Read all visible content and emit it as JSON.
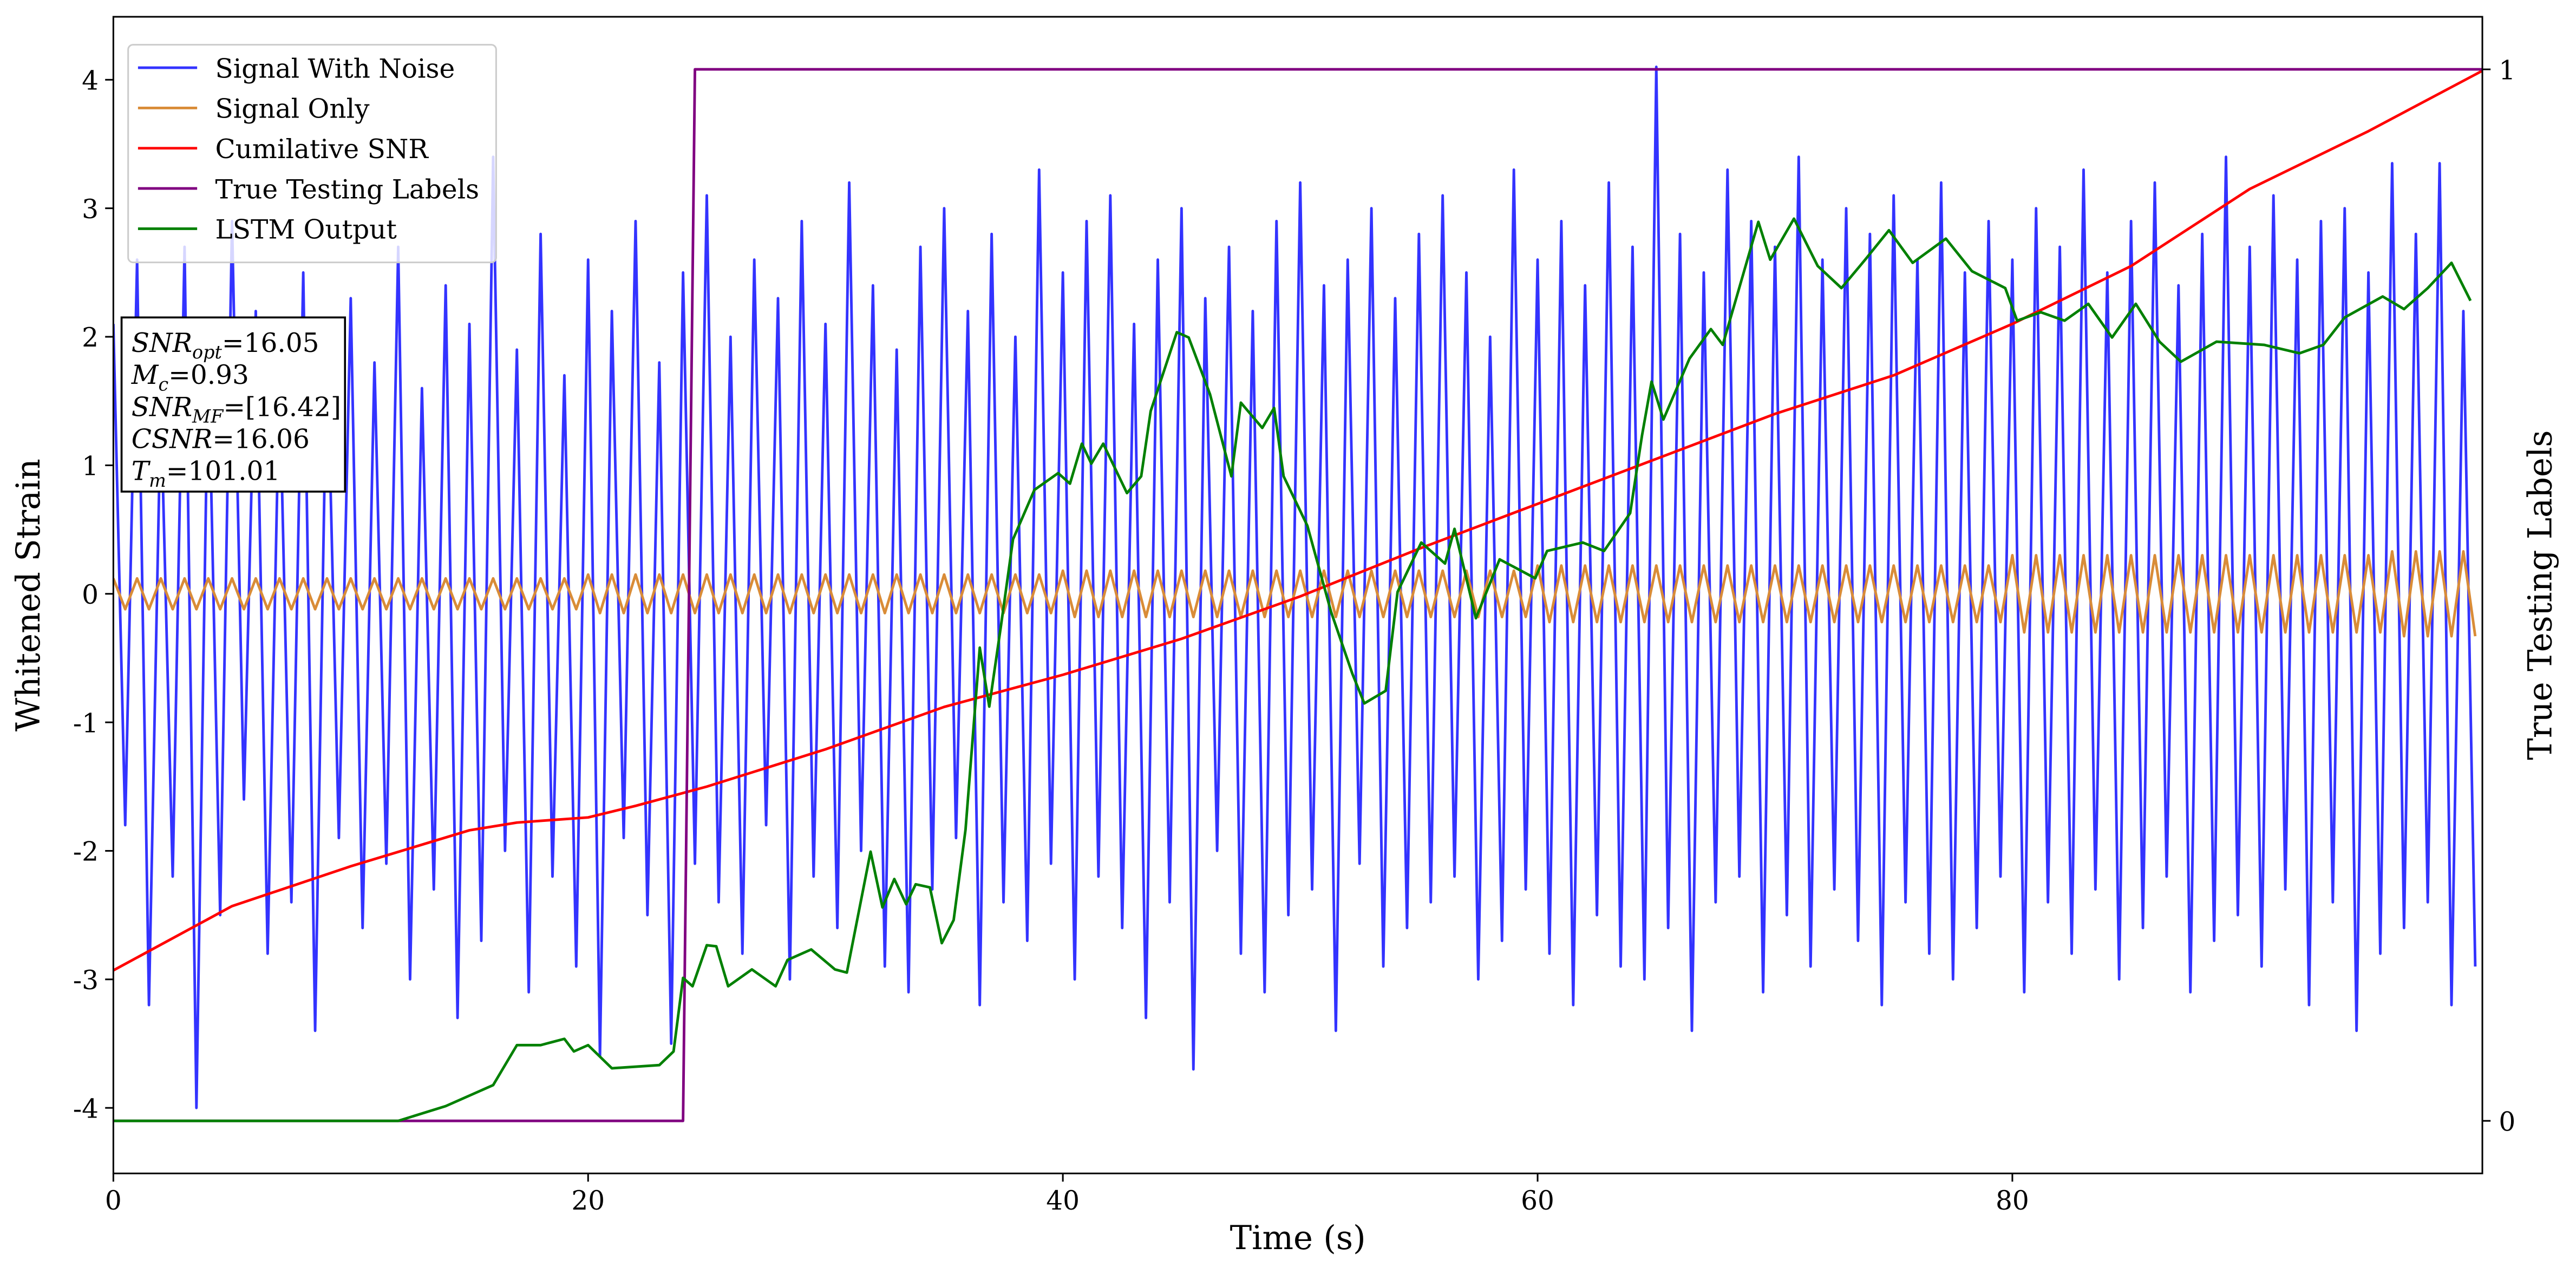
{
  "chart_data": {
    "type": "line",
    "xlabel": "Time (s)",
    "ylabel": "Whitened Strain",
    "y2label": "True Testing Labels",
    "xlim": [
      0,
      99.8
    ],
    "ylim": [
      -4.51,
      4.49
    ],
    "y2lim": [
      -0.05,
      1.05
    ],
    "xticks": [
      0,
      20,
      40,
      60,
      80
    ],
    "yticks": [
      -4,
      -3,
      -2,
      -1,
      0,
      1,
      2,
      3,
      4
    ],
    "y2ticks": [
      0,
      1
    ],
    "legend": "upper left",
    "x": [
      0,
      0.5,
      1,
      1.5,
      2,
      2.5,
      3,
      3.5,
      4,
      4.5,
      5,
      5.5,
      6,
      6.5,
      7,
      7.5,
      8,
      8.5,
      9,
      9.5,
      10,
      10.5,
      11,
      11.5,
      12,
      12.5,
      13,
      13.5,
      14,
      14.5,
      15,
      15.5,
      16,
      16.5,
      17,
      17.5,
      18,
      18.5,
      19,
      19.5,
      20,
      20.5,
      21,
      21.5,
      22,
      22.5,
      23,
      23.5,
      24,
      24.5,
      25,
      25.5,
      26,
      26.5,
      27,
      27.5,
      28,
      28.5,
      29,
      29.5,
      30,
      30.5,
      31,
      31.5,
      32,
      32.5,
      33,
      33.5,
      34,
      34.5,
      35,
      35.5,
      36,
      36.5,
      37,
      37.5,
      38,
      38.5,
      39,
      39.5,
      40,
      40.5,
      41,
      41.5,
      42,
      42.5,
      43,
      43.5,
      44,
      44.5,
      45,
      45.5,
      46,
      46.5,
      47,
      47.5,
      48,
      48.5,
      49,
      49.5,
      50,
      50.5,
      51,
      51.5,
      52,
      52.5,
      53,
      53.5,
      54,
      54.5,
      55,
      55.5,
      56,
      56.5,
      57,
      57.5,
      58,
      58.5,
      59,
      59.5,
      60,
      60.5,
      61,
      61.5,
      62,
      62.5,
      63,
      63.5,
      64,
      64.5,
      65,
      65.5,
      66,
      66.5,
      67,
      67.5,
      68,
      68.5,
      69,
      69.5,
      70,
      70.5,
      71,
      71.5,
      72,
      72.5,
      73,
      73.5,
      74,
      74.5,
      75,
      75.5,
      76,
      76.5,
      77,
      77.5,
      78,
      78.5,
      79,
      79.5,
      80,
      80.5,
      81,
      81.5,
      82,
      82.5,
      83,
      83.5,
      84,
      84.5,
      85,
      85.5,
      86,
      86.5,
      87,
      87.5,
      88,
      88.5,
      89,
      89.5,
      90,
      90.5,
      91,
      91.5,
      92,
      92.5,
      93,
      93.5,
      94,
      94.5,
      95,
      95.5,
      96,
      96.5,
      97,
      97.5,
      98,
      98.5,
      99,
      99.5
    ],
    "series": [
      {
        "name": "Signal With Noise",
        "color": "#3333ff",
        "values": [
          2.1,
          -1.8,
          2.6,
          -3.2,
          1.5,
          -2.2,
          2.7,
          -4.0,
          1.9,
          -2.5,
          2.9,
          -1.6,
          2.2,
          -2.8,
          1.7,
          -2.4,
          2.5,
          -3.4,
          2.0,
          -1.9,
          2.3,
          -2.6,
          1.8,
          -2.1,
          2.7,
          -3.0,
          1.6,
          -2.3,
          2.4,
          -3.3,
          2.1,
          -2.7,
          3.4,
          -2.0,
          1.9,
          -3.1,
          2.8,
          -2.2,
          1.7,
          -2.9,
          2.6,
          -3.6,
          2.2,
          -1.9,
          2.9,
          -2.5,
          1.8,
          -3.5,
          2.5,
          -2.1,
          3.1,
          -2.4,
          2.0,
          -2.8,
          2.6,
          -1.8,
          2.3,
          -3.0,
          2.9,
          -2.2,
          2.1,
          -2.6,
          3.2,
          -2.0,
          2.4,
          -2.9,
          1.9,
          -3.1,
          2.7,
          -2.3,
          3.0,
          -1.9,
          2.2,
          -3.2,
          2.8,
          -2.4,
          2.0,
          -2.7,
          3.3,
          -2.1,
          2.5,
          -3.0,
          2.9,
          -2.2,
          3.1,
          -2.6,
          2.1,
          -3.3,
          2.6,
          -2.4,
          3.0,
          -3.7,
          2.3,
          -2.0,
          2.7,
          -2.8,
          2.2,
          -3.1,
          2.9,
          -2.5,
          3.2,
          -2.3,
          2.4,
          -3.4,
          2.6,
          -2.1,
          3.0,
          -2.9,
          2.3,
          -2.6,
          2.8,
          -2.4,
          3.1,
          -2.2,
          2.5,
          -3.0,
          2.0,
          -2.7,
          3.3,
          -2.3,
          2.6,
          -2.8,
          2.9,
          -3.2,
          2.4,
          -2.5,
          3.2,
          -2.9,
          2.7,
          -3.0,
          4.1,
          -2.6,
          2.8,
          -3.4,
          2.5,
          -2.4,
          3.3,
          -2.2,
          2.9,
          -3.1,
          2.7,
          -2.5,
          3.4,
          -2.9,
          2.6,
          -2.3,
          3.0,
          -2.7,
          2.8,
          -3.2,
          3.1,
          -2.4,
          2.6,
          -2.8,
          3.2,
          -3.0,
          2.5,
          -2.6,
          2.9,
          -2.2,
          2.6,
          -3.1,
          3.0,
          -2.4,
          2.7,
          -2.8,
          3.3,
          -2.3,
          2.5,
          -3.0,
          2.9,
          -2.6,
          3.2,
          -2.2,
          2.4,
          -3.1,
          2.8,
          -2.7,
          3.4,
          -2.5,
          2.7,
          -2.9,
          3.1,
          -2.3,
          2.6,
          -3.2,
          2.9,
          -2.4,
          3.0,
          -3.4,
          2.5,
          -2.8,
          3.35,
          -2.6,
          2.8,
          -2.4,
          3.35,
          -3.2,
          2.2,
          -2.9
        ]
      },
      {
        "name": "Signal Only",
        "color": "#d98c38",
        "values": [
          0.12,
          -0.12,
          0.12,
          -0.12,
          0.12,
          -0.12,
          0.12,
          -0.12,
          0.12,
          -0.12,
          0.12,
          -0.12,
          0.12,
          -0.12,
          0.12,
          -0.12,
          0.12,
          -0.12,
          0.12,
          -0.12,
          0.12,
          -0.12,
          0.12,
          -0.12,
          0.12,
          -0.12,
          0.12,
          -0.12,
          0.12,
          -0.12,
          0.12,
          -0.12,
          0.12,
          -0.12,
          0.12,
          -0.12,
          0.12,
          -0.12,
          0.12,
          -0.12,
          0.15,
          -0.15,
          0.15,
          -0.15,
          0.15,
          -0.15,
          0.15,
          -0.15,
          0.15,
          -0.15,
          0.15,
          -0.15,
          0.15,
          -0.15,
          0.15,
          -0.15,
          0.15,
          -0.15,
          0.15,
          -0.15,
          0.15,
          -0.15,
          0.15,
          -0.15,
          0.15,
          -0.15,
          0.15,
          -0.15,
          0.15,
          -0.15,
          0.15,
          -0.15,
          0.15,
          -0.15,
          0.15,
          -0.15,
          0.15,
          -0.15,
          0.15,
          -0.15,
          0.18,
          -0.18,
          0.18,
          -0.18,
          0.18,
          -0.18,
          0.18,
          -0.18,
          0.18,
          -0.18,
          0.18,
          -0.18,
          0.18,
          -0.18,
          0.18,
          -0.18,
          0.18,
          -0.18,
          0.18,
          -0.18,
          0.18,
          -0.18,
          0.18,
          -0.18,
          0.18,
          -0.18,
          0.18,
          -0.18,
          0.18,
          -0.18,
          0.18,
          -0.18,
          0.18,
          -0.18,
          0.18,
          -0.18,
          0.18,
          -0.18,
          0.18,
          -0.18,
          0.22,
          -0.22,
          0.22,
          -0.22,
          0.22,
          -0.22,
          0.22,
          -0.22,
          0.22,
          -0.22,
          0.22,
          -0.22,
          0.22,
          -0.22,
          0.22,
          -0.22,
          0.22,
          -0.22,
          0.22,
          -0.22,
          0.22,
          -0.22,
          0.22,
          -0.22,
          0.22,
          -0.22,
          0.22,
          -0.22,
          0.22,
          -0.22,
          0.22,
          -0.22,
          0.22,
          -0.22,
          0.22,
          -0.22,
          0.22,
          -0.22,
          0.22,
          -0.22,
          0.3,
          -0.3,
          0.3,
          -0.3,
          0.3,
          -0.3,
          0.3,
          -0.3,
          0.3,
          -0.3,
          0.3,
          -0.3,
          0.3,
          -0.3,
          0.3,
          -0.3,
          0.3,
          -0.3,
          0.3,
          -0.3,
          0.3,
          -0.3,
          0.3,
          -0.3,
          0.3,
          -0.3,
          0.3,
          -0.3,
          0.3,
          -0.3,
          0.3,
          -0.3,
          0.33,
          -0.33,
          0.33,
          -0.33,
          0.33,
          -0.33,
          0.33,
          -0.33
        ]
      },
      {
        "name": "Cumilative SNR",
        "color": "#ff0000",
        "x": [
          0,
          5,
          10,
          15,
          17,
          20,
          22,
          25,
          30,
          35,
          40,
          45,
          50,
          55,
          60,
          65,
          70,
          75,
          80,
          85,
          90,
          95,
          99.8
        ],
        "values": [
          -2.93,
          -2.43,
          -2.12,
          -1.84,
          -1.78,
          -1.74,
          -1.65,
          -1.5,
          -1.21,
          -0.88,
          -0.63,
          -0.35,
          -0.02,
          0.35,
          0.7,
          1.05,
          1.4,
          1.7,
          2.1,
          2.55,
          3.15,
          3.6,
          4.07
        ]
      },
      {
        "name": "True Testing Labels",
        "color": "#800080",
        "axis": "y2",
        "x": [
          0,
          24,
          24.5,
          99.8
        ],
        "values": [
          0,
          0,
          1,
          1
        ]
      },
      {
        "name": "LSTM Output",
        "color": "#008000",
        "axis": "y2",
        "x": [
          0,
          12,
          14,
          16,
          17,
          18,
          19,
          19.4,
          20,
          21,
          23,
          23.6,
          24,
          24.4,
          25,
          25.4,
          25.9,
          26.9,
          27.9,
          28.4,
          29.4,
          30.4,
          30.9,
          31.9,
          32.4,
          32.9,
          33.4,
          33.8,
          34.4,
          34.9,
          35.4,
          35.9,
          36.5,
          36.9,
          37.4,
          37.9,
          38.8,
          39.8,
          40.3,
          40.8,
          41.2,
          41.7,
          42.7,
          43.3,
          43.7,
          44.8,
          45.3,
          46.2,
          47.1,
          47.5,
          48.4,
          48.9,
          49.3,
          50.3,
          51.3,
          52.2,
          52.7,
          53.6,
          54.1,
          55.1,
          56.1,
          56.5,
          57.4,
          58.4,
          59.9,
          60.4,
          61.9,
          62.8,
          63.9,
          64.4,
          64.8,
          65.3,
          66.4,
          67.3,
          67.8,
          68.3,
          69.3,
          69.8,
          70.8,
          71.8,
          72.8,
          73.8,
          74.8,
          75.8,
          77.2,
          78.3,
          79.7,
          80.2,
          81.2,
          82.2,
          83.2,
          84.2,
          85.2,
          86.2,
          87.1,
          88.6,
          90.6,
          92.1,
          93.1,
          94.0,
          95.6,
          96.5,
          97.5,
          98.5,
          99.3
        ],
        "values": [
          0,
          0,
          0.014,
          0.034,
          0.072,
          0.072,
          0.078,
          0.066,
          0.072,
          0.05,
          0.053,
          0.066,
          0.136,
          0.128,
          0.167,
          0.166,
          0.128,
          0.144,
          0.128,
          0.153,
          0.163,
          0.144,
          0.141,
          0.256,
          0.203,
          0.23,
          0.206,
          0.225,
          0.222,
          0.169,
          0.191,
          0.277,
          0.45,
          0.394,
          0.472,
          0.553,
          0.6,
          0.616,
          0.606,
          0.644,
          0.625,
          0.644,
          0.597,
          0.613,
          0.675,
          0.75,
          0.745,
          0.691,
          0.613,
          0.683,
          0.659,
          0.678,
          0.613,
          0.566,
          0.484,
          0.425,
          0.397,
          0.409,
          0.503,
          0.55,
          0.53,
          0.563,
          0.478,
          0.534,
          0.516,
          0.542,
          0.55,
          0.542,
          0.578,
          0.652,
          0.703,
          0.667,
          0.725,
          0.753,
          0.738,
          0.777,
          0.855,
          0.819,
          0.858,
          0.813,
          0.792,
          0.819,
          0.847,
          0.816,
          0.839,
          0.808,
          0.792,
          0.761,
          0.769,
          0.761,
          0.777,
          0.745,
          0.777,
          0.741,
          0.722,
          0.741,
          0.738,
          0.73,
          0.738,
          0.764,
          0.784,
          0.772,
          0.792,
          0.816,
          0.78
        ]
      }
    ],
    "annotations": [
      {
        "symbol": "SNR",
        "sub": "opt",
        "text": "=16.05"
      },
      {
        "symbol": "M",
        "sub": "c",
        "text": "=0.93"
      },
      {
        "symbol": "SNR",
        "sub": "MF",
        "text": "=[16.42]"
      },
      {
        "symbol": "CSNR",
        "text": "=16.06"
      },
      {
        "symbol": "T",
        "sub": "m",
        "text": "=101.01"
      }
    ]
  }
}
